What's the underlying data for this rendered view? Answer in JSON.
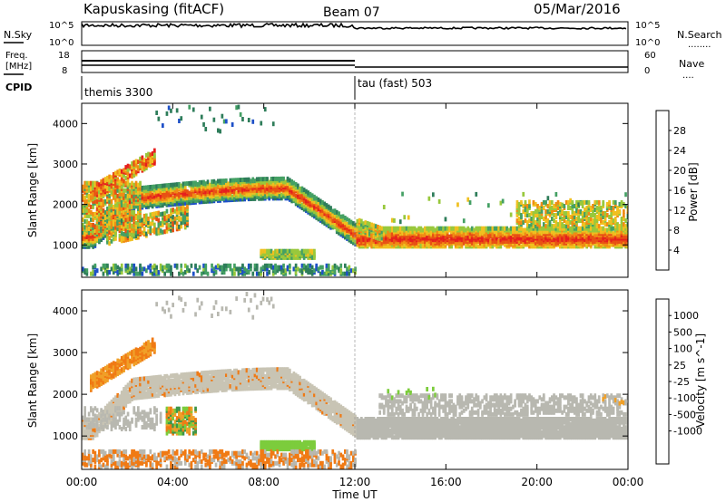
{
  "header": {
    "station": "Kapuskasing (fitACF)",
    "beam": "Beam 07",
    "date": "05/Mar/2016"
  },
  "noise_panel": {
    "left_label": "N.Sky",
    "right_label": "N.Search",
    "left_ticks": [
      "10^5",
      "10^0"
    ],
    "right_ticks": [
      "10^5",
      "10^0"
    ],
    "right_legend": "........"
  },
  "freq_panel": {
    "left_label_line1": "Freq.",
    "left_label_line2": "[MHz]",
    "left_ticks": [
      "18",
      "8"
    ],
    "right_label": "Nave",
    "right_ticks": [
      "60",
      "0"
    ],
    "right_legend": "....",
    "cpid_label": "CPID"
  },
  "modes": [
    {
      "name": "themis 3300"
    },
    {
      "name": "tau (fast) 503"
    }
  ],
  "colors": {
    "power_scale": [
      "#1e1ee6",
      "#1e50c8",
      "#2e7d5a",
      "#44a064",
      "#98c83c",
      "#f0c020",
      "#f08c14",
      "#e85014",
      "#e61e1e"
    ],
    "velocity_scale": [
      "#1e32c8",
      "#2866c0",
      "#3c9648",
      "#7ccc3c",
      "#b8b8b0",
      "#c8c4b4",
      "#f0a028",
      "#f07a14",
      "#e84818",
      "#e61e1e"
    ]
  },
  "chart_data": [
    {
      "type": "heatmap",
      "quantity": "power",
      "ylabel": "Slant Range [km]",
      "yticks": [
        "1000",
        "2000",
        "3000",
        "4000"
      ],
      "ylim": [
        200,
        4500
      ],
      "xlim": [
        "00:00",
        "24:00"
      ],
      "colorbar_label": "Power [dB]",
      "colorbar_ticks": [
        "4",
        "8",
        "12",
        "16",
        "20",
        "24",
        "28"
      ],
      "features": [
        {
          "desc": "arc",
          "start": "00:00",
          "end": "12:00",
          "range_start": 1200,
          "range_peak": 2400,
          "peak_time": "09:00",
          "range_end": 1300
        },
        {
          "desc": "band",
          "start": "12:00",
          "end": "24:00",
          "range": 1200
        }
      ]
    },
    {
      "type": "heatmap",
      "quantity": "velocity",
      "ylabel": "Slant Range [km]",
      "yticks": [
        "1000",
        "2000",
        "3000",
        "4000"
      ],
      "ylim": [
        200,
        4500
      ],
      "xlim": [
        "00:00",
        "24:00"
      ],
      "xticks": [
        "00:00",
        "04:00",
        "08:00",
        "12:00",
        "16:00",
        "20:00",
        "00:00"
      ],
      "xlabel": "Time UT",
      "colorbar_label": "Velocity [m s^-1]",
      "colorbar_ticks": [
        "1000",
        "500",
        "100",
        "25",
        "-25",
        "-100",
        "-500",
        "-1000"
      ]
    }
  ]
}
